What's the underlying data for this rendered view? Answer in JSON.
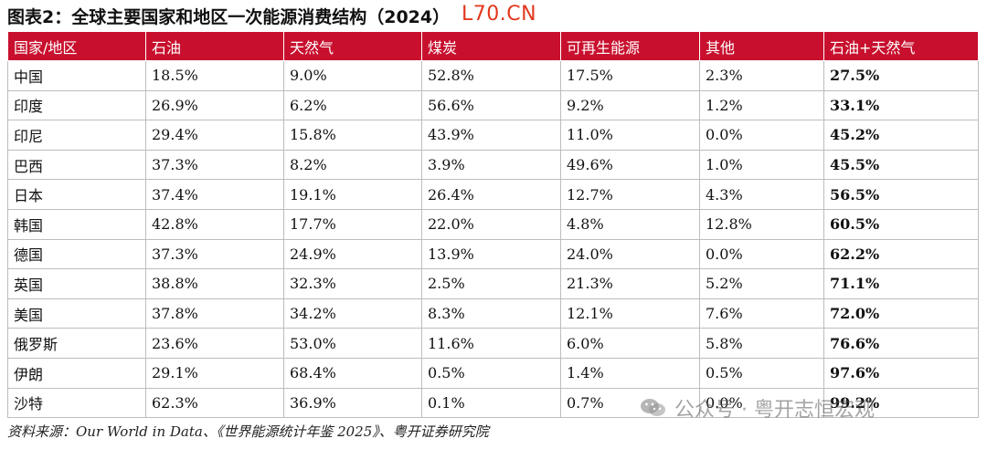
{
  "title": "图表2：全球主要国家和地区一次能源消费结构（2024）",
  "site_mark": "L70.CN",
  "table": {
    "headers": [
      "国家/地区",
      "石油",
      "天然气",
      "煤炭",
      "可再生能源",
      "其他",
      "石油+天然气"
    ],
    "rows": [
      [
        "中国",
        "18.5%",
        "9.0%",
        "52.8%",
        "17.5%",
        "2.3%",
        "27.5%"
      ],
      [
        "印度",
        "26.9%",
        "6.2%",
        "56.6%",
        "9.2%",
        "1.2%",
        "33.1%"
      ],
      [
        "印尼",
        "29.4%",
        "15.8%",
        "43.9%",
        "11.0%",
        "0.0%",
        "45.2%"
      ],
      [
        "巴西",
        "37.3%",
        "8.2%",
        "3.9%",
        "49.6%",
        "1.0%",
        "45.5%"
      ],
      [
        "日本",
        "37.4%",
        "19.1%",
        "26.4%",
        "12.7%",
        "4.3%",
        "56.5%"
      ],
      [
        "韩国",
        "42.8%",
        "17.7%",
        "22.0%",
        "4.8%",
        "12.8%",
        "60.5%"
      ],
      [
        "德国",
        "37.3%",
        "24.9%",
        "13.9%",
        "24.0%",
        "0.0%",
        "62.2%"
      ],
      [
        "英国",
        "38.8%",
        "32.3%",
        "2.5%",
        "21.3%",
        "5.2%",
        "71.1%"
      ],
      [
        "美国",
        "37.8%",
        "34.2%",
        "8.3%",
        "12.1%",
        "7.6%",
        "72.0%"
      ],
      [
        "俄罗斯",
        "23.6%",
        "53.0%",
        "11.6%",
        "6.0%",
        "5.8%",
        "76.6%"
      ],
      [
        "伊朗",
        "29.1%",
        "68.4%",
        "0.5%",
        "1.4%",
        "0.5%",
        "97.6%"
      ],
      [
        "沙特",
        "62.3%",
        "36.9%",
        "0.1%",
        "0.7%",
        "0.0%",
        "99.2%"
      ]
    ]
  },
  "source": "资料来源：Our World in Data、《世界能源统计年鉴 2025》、粤开证券研究院",
  "watermark": {
    "text": "公众号 · 粤开志恒宏观",
    "icon": "wechat-icon"
  },
  "colors": {
    "header_bg": "#c8102e",
    "header_text": "#ffffff",
    "site_mark": "#e3371d"
  }
}
